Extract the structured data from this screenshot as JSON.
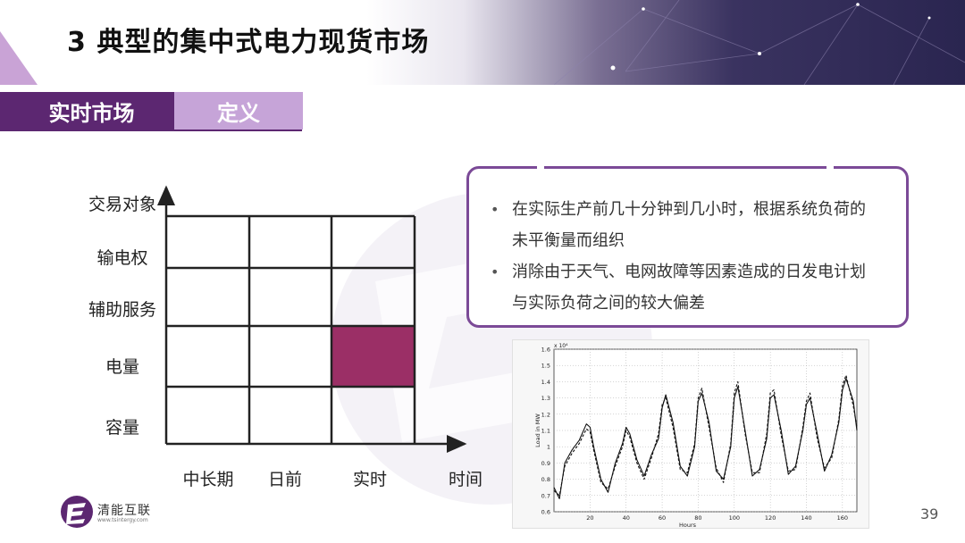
{
  "header": {
    "title": "3 典型的集中式电力现货市场"
  },
  "tabs": [
    {
      "label": "实时市场",
      "active": true
    },
    {
      "label": "定义",
      "active": false
    }
  ],
  "diagram": {
    "row_labels": [
      "交易对象",
      "输电权",
      "辅助服务",
      "电量",
      "容量"
    ],
    "col_labels": [
      "中长期",
      "日前",
      "实时",
      "时间"
    ],
    "highlight_cell": {
      "row": "电量",
      "col": "实时"
    },
    "highlight_color": "#9b2f66"
  },
  "info": {
    "bullets": [
      "在实际生产前几十分钟到几小时，根据系统负荷的未平衡量而组织",
      "消除由于天气、电网故障等因素造成的日发电计划与实际负荷之间的较大偏差"
    ]
  },
  "chart_data": {
    "type": "line",
    "xlabel": "Hours",
    "ylabel": "Load in MW",
    "y_multiplier_label": "x 10⁴",
    "xlim": [
      0,
      168
    ],
    "ylim": [
      0.6,
      1.6
    ],
    "x_ticks": [
      20,
      40,
      60,
      80,
      100,
      120,
      140,
      160
    ],
    "y_ticks": [
      0.6,
      0.7,
      0.8,
      0.9,
      1,
      1.1,
      1.2,
      1.3,
      1.4,
      1.5,
      1.6
    ],
    "grid": true,
    "series": [
      {
        "style": "solid",
        "x": [
          0,
          3,
          6,
          10,
          14,
          18,
          20,
          22,
          26,
          30,
          34,
          38,
          40,
          42,
          46,
          50,
          54,
          58,
          60,
          62,
          66,
          70,
          74,
          78,
          80,
          82,
          86,
          90,
          94,
          98,
          100,
          102,
          106,
          110,
          114,
          118,
          120,
          122,
          126,
          130,
          134,
          138,
          140,
          142,
          146,
          150,
          154,
          158,
          160,
          162,
          166,
          168
        ],
        "y": [
          0.75,
          0.68,
          0.9,
          0.98,
          1.04,
          1.14,
          1.12,
          1.0,
          0.8,
          0.72,
          0.9,
          1.02,
          1.12,
          1.08,
          0.92,
          0.82,
          0.95,
          1.05,
          1.24,
          1.32,
          1.15,
          0.88,
          0.82,
          1.0,
          1.28,
          1.33,
          1.15,
          0.85,
          0.8,
          1.0,
          1.3,
          1.37,
          1.1,
          0.82,
          0.86,
          1.05,
          1.3,
          1.32,
          1.1,
          0.83,
          0.88,
          1.1,
          1.26,
          1.3,
          1.08,
          0.85,
          0.95,
          1.15,
          1.35,
          1.42,
          1.28,
          1.1
        ]
      },
      {
        "style": "dashed",
        "x": [
          0,
          3,
          6,
          10,
          14,
          18,
          20,
          22,
          26,
          30,
          34,
          38,
          40,
          42,
          46,
          50,
          54,
          58,
          60,
          62,
          66,
          70,
          74,
          78,
          80,
          82,
          86,
          90,
          94,
          98,
          100,
          102,
          106,
          110,
          114,
          118,
          120,
          122,
          126,
          130,
          134,
          138,
          140,
          142,
          146,
          150,
          154,
          158,
          160,
          162,
          166,
          168
        ],
        "y": [
          0.73,
          0.7,
          0.88,
          0.96,
          1.02,
          1.11,
          1.09,
          0.98,
          0.78,
          0.74,
          0.88,
          1.0,
          1.1,
          1.06,
          0.9,
          0.8,
          0.93,
          1.08,
          1.26,
          1.3,
          1.12,
          0.86,
          0.84,
          1.02,
          1.3,
          1.36,
          1.12,
          0.87,
          0.78,
          1.02,
          1.33,
          1.4,
          1.08,
          0.84,
          0.84,
          1.08,
          1.33,
          1.35,
          1.07,
          0.85,
          0.86,
          1.12,
          1.28,
          1.33,
          1.05,
          0.87,
          0.93,
          1.17,
          1.38,
          1.44,
          1.25,
          1.12
        ]
      }
    ]
  },
  "footer": {
    "logo_text": "清能互联",
    "logo_url": "www.tsintergy.com",
    "page_number": "39"
  },
  "colors": {
    "primary_purple": "#5c2771",
    "light_purple": "#c6a4d8",
    "box_border": "#7b4a97"
  }
}
